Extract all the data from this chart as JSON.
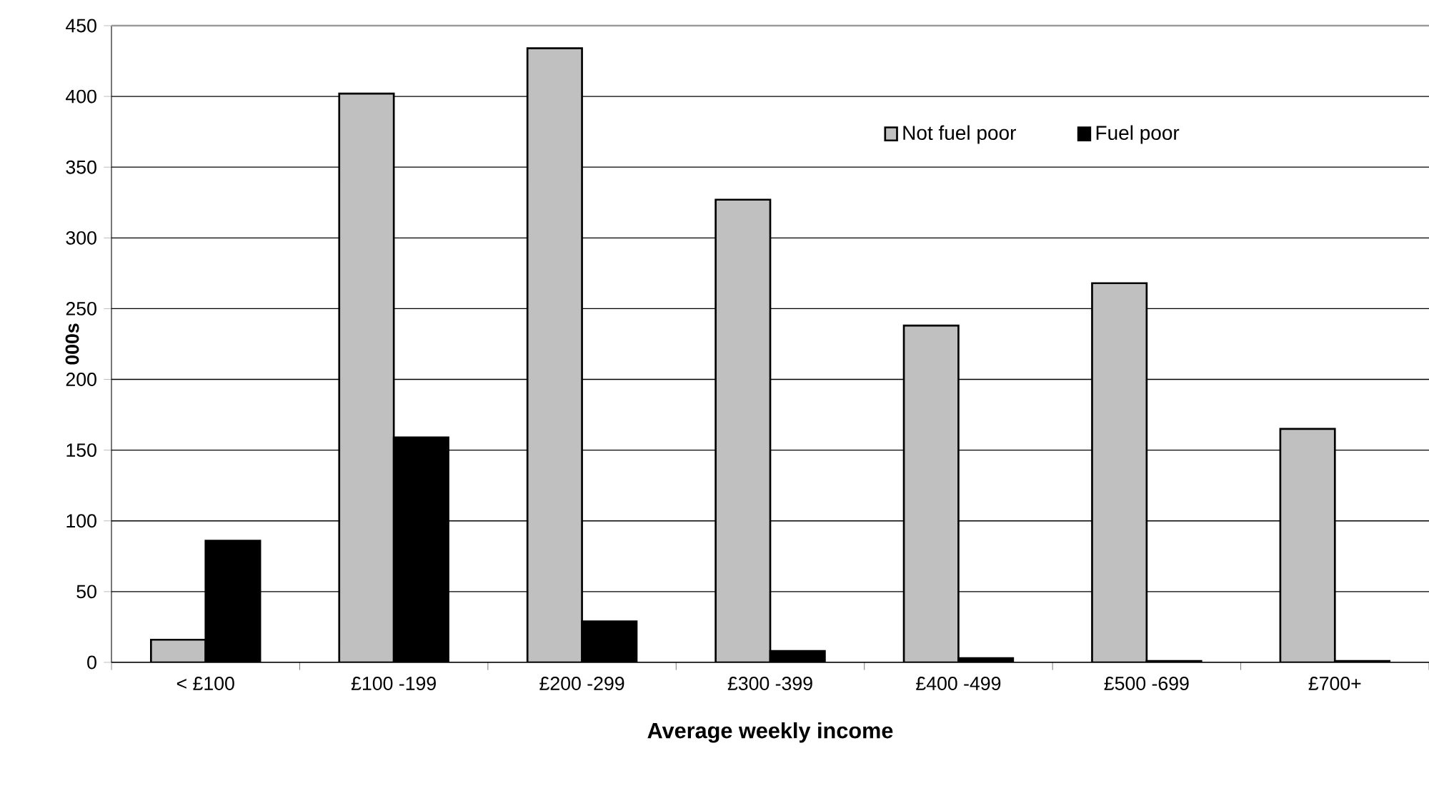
{
  "chart_data": {
    "type": "bar",
    "xlabel": "Average weekly income",
    "ylabel": "000s",
    "categories": [
      "< £100",
      "£100 -199",
      "£200 -299",
      "£300 -399",
      "£400 -499",
      "£500 -699",
      "£700+"
    ],
    "series": [
      {
        "name": "Not fuel poor",
        "color": "#c0c0c0",
        "values": [
          16,
          402,
          434,
          327,
          238,
          268,
          165
        ]
      },
      {
        "name": "Fuel poor",
        "color": "#000000",
        "values": [
          86,
          159,
          29,
          8,
          3,
          1,
          1
        ]
      }
    ],
    "ylim": [
      0,
      450
    ],
    "yticks": [
      0,
      50,
      100,
      150,
      200,
      250,
      300,
      350,
      400,
      450
    ],
    "grid": "y",
    "legend": "top"
  }
}
